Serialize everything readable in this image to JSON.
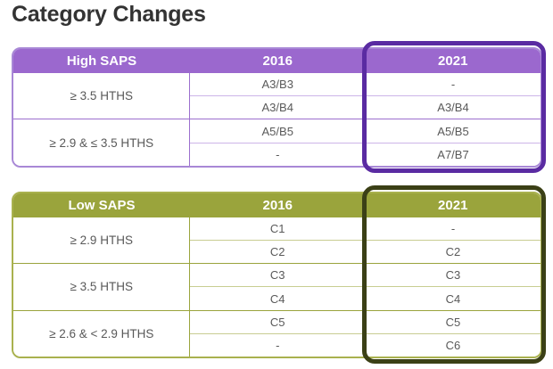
{
  "page": {
    "title": "Category Changes"
  },
  "theme": {
    "purple_header": "#9b68ce",
    "purple_outline": "#5a2ba2",
    "olive_header": "#9aa43c",
    "olive_outline": "#3b4016",
    "cell_text": "#595959",
    "header_text": "#ffffff"
  },
  "tables": [
    {
      "name": "high_saps",
      "header": {
        "label": "High SAPS",
        "col2016": "2016",
        "col2021": "2021"
      },
      "groups": [
        {
          "label": "≥ 3.5 HTHS",
          "rows": [
            {
              "y2016": "A3/B3",
              "y2021": "-"
            },
            {
              "y2016": "A3/B4",
              "y2021": "A3/B4"
            }
          ]
        },
        {
          "label": "≥ 2.9 & ≤ 3.5 HTHS",
          "rows": [
            {
              "y2016": "A5/B5",
              "y2021": "A5/B5"
            },
            {
              "y2016": "-",
              "y2021": "A7/B7"
            }
          ]
        }
      ]
    },
    {
      "name": "low_saps",
      "header": {
        "label": "Low SAPS",
        "col2016": "2016",
        "col2021": "2021"
      },
      "groups": [
        {
          "label": "≥ 2.9 HTHS",
          "rows": [
            {
              "y2016": "C1",
              "y2021": "-"
            },
            {
              "y2016": "C2",
              "y2021": "C2"
            }
          ]
        },
        {
          "label": "≥ 3.5 HTHS",
          "rows": [
            {
              "y2016": "C3",
              "y2021": "C3"
            },
            {
              "y2016": "C4",
              "y2021": "C4"
            }
          ]
        },
        {
          "label": "≥ 2.6 & < 2.9 HTHS",
          "rows": [
            {
              "y2016": "C5",
              "y2021": "C5"
            },
            {
              "y2016": "-",
              "y2021": "C6"
            }
          ]
        }
      ]
    }
  ]
}
